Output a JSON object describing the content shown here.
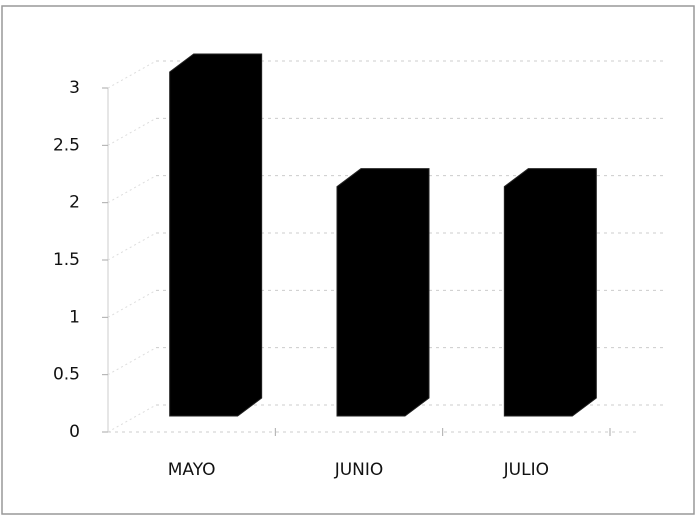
{
  "chart_data": {
    "type": "bar3d",
    "categories": [
      "MAYO",
      "JUNIO",
      "JULIO"
    ],
    "values": [
      3,
      2,
      2
    ],
    "color": "#000000",
    "ylim": [
      0,
      3
    ],
    "yticks": [
      0,
      0.5,
      1,
      1.5,
      2,
      2.5,
      3
    ],
    "grid": true
  }
}
